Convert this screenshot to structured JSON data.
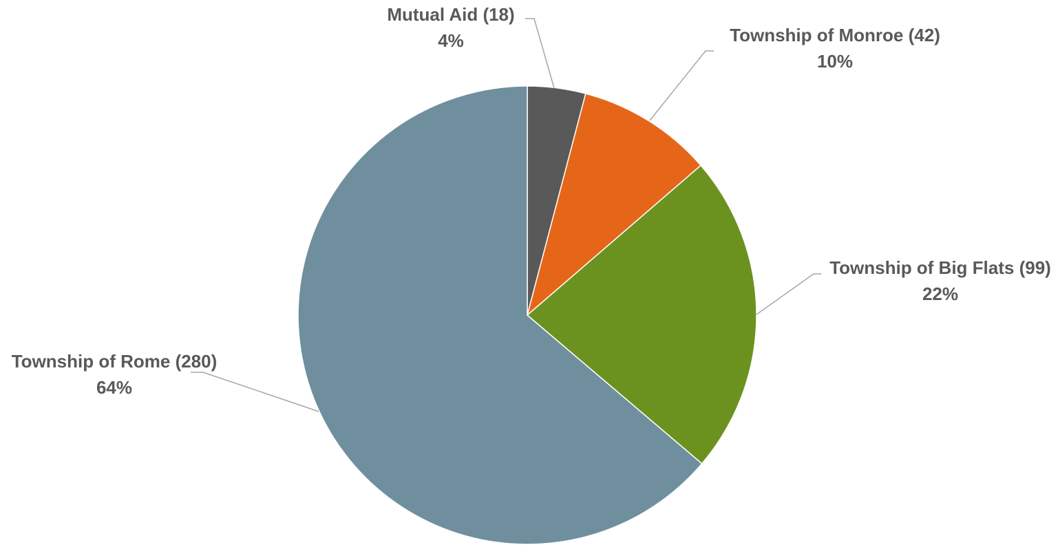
{
  "chart_data": {
    "type": "pie",
    "title": "",
    "start_angle_deg": 0,
    "direction": "clockwise",
    "legend": "none",
    "slices": [
      {
        "name": "Mutual Aid",
        "value": 18,
        "percent_label": "4%",
        "color": "#595959"
      },
      {
        "name": "Township of Monroe",
        "value": 42,
        "percent_label": "10%",
        "color": "#E66619"
      },
      {
        "name": "Township of Big Flats",
        "value": 99,
        "percent_label": "22%",
        "color": "#6B921E"
      },
      {
        "name": "Township of Rome",
        "value": 280,
        "percent_label": "64%",
        "color": "#6F8F9E"
      }
    ]
  }
}
